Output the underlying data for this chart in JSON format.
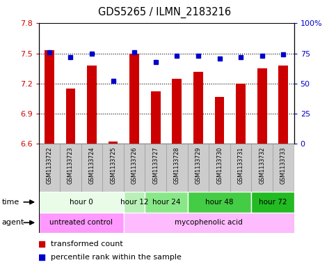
{
  "title": "GDS5265 / ILMN_2183216",
  "samples": [
    "GSM1133722",
    "GSM1133723",
    "GSM1133724",
    "GSM1133725",
    "GSM1133726",
    "GSM1133727",
    "GSM1133728",
    "GSM1133729",
    "GSM1133730",
    "GSM1133731",
    "GSM1133732",
    "GSM1133733"
  ],
  "bar_values": [
    7.53,
    7.15,
    7.38,
    6.62,
    7.5,
    7.12,
    7.25,
    7.32,
    7.07,
    7.2,
    7.35,
    7.38
  ],
  "percentile_values": [
    76,
    72,
    75,
    52,
    76,
    68,
    73,
    73,
    71,
    72,
    73,
    74
  ],
  "bar_color": "#cc0000",
  "percentile_color": "#0000cc",
  "ylim_left": [
    6.6,
    7.8
  ],
  "ylim_right": [
    0,
    100
  ],
  "yticks_left": [
    6.6,
    6.9,
    7.2,
    7.5,
    7.8
  ],
  "yticks_right": [
    0,
    25,
    50,
    75,
    100
  ],
  "ytick_labels_right": [
    "0",
    "25",
    "50",
    "75",
    "100%"
  ],
  "hlines": [
    6.9,
    7.2,
    7.5
  ],
  "time_groups": [
    {
      "label": "hour 0",
      "start": 0,
      "end": 3,
      "color": "#e8fce8"
    },
    {
      "label": "hour 12",
      "start": 4,
      "end": 4,
      "color": "#b8f0b8"
    },
    {
      "label": "hour 24",
      "start": 5,
      "end": 6,
      "color": "#88e888"
    },
    {
      "label": "hour 48",
      "start": 7,
      "end": 9,
      "color": "#44cc44"
    },
    {
      "label": "hour 72",
      "start": 10,
      "end": 11,
      "color": "#22bb22"
    }
  ],
  "agent_groups": [
    {
      "label": "untreated control",
      "start": 0,
      "end": 3,
      "color": "#ff99ff"
    },
    {
      "label": "mycophenolic acid",
      "start": 4,
      "end": 11,
      "color": "#ffbbff"
    }
  ],
  "bar_width": 0.45,
  "background_color": "#ffffff",
  "sample_label_bg": "#cccccc",
  "sample_label_border": "#999999"
}
